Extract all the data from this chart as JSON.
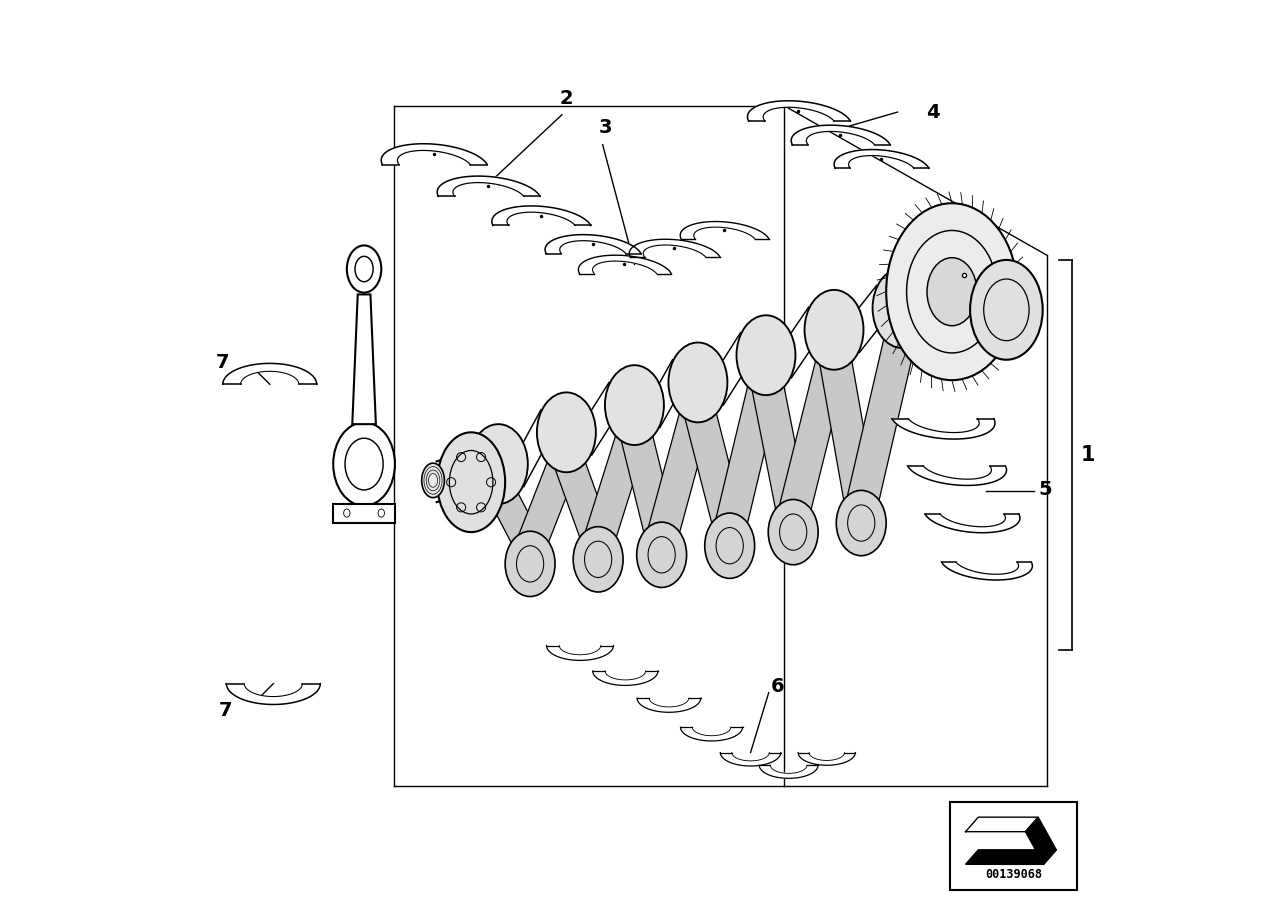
{
  "bg_color": "#ffffff",
  "line_color": "#000000",
  "title": "",
  "fig_width": 12.87,
  "fig_height": 9.1,
  "dpi": 100,
  "diagram_id": "00139068"
}
